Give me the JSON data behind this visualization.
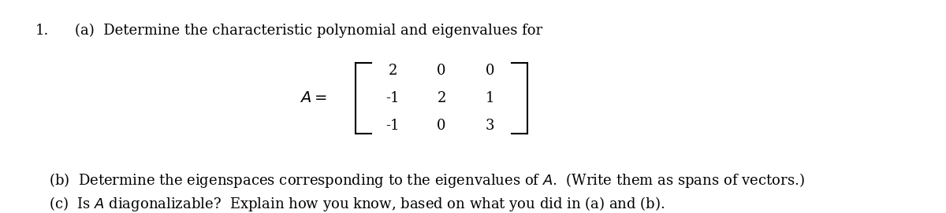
{
  "bg_color": "#ffffff",
  "text_color": "#000000",
  "fig_width": 12.0,
  "fig_height": 2.71,
  "dpi": 100,
  "line1_number": "1.",
  "line1_text": "(a)  Determine the characteristic polynomial and eigenvalues for",
  "matrix_label": "A =",
  "matrix": [
    [
      2,
      0,
      0
    ],
    [
      -1,
      2,
      1
    ],
    [
      -1,
      0,
      3
    ]
  ],
  "line_b": "(b)  Determine the eigenspaces corresponding to the eigenvalues of $A$.  (Write them as spans of vectors.)",
  "line_c": "(c)  Is $A$ diagonalizable?  Explain how you know, based on what you did in (a) and (b).",
  "font_size_main": 13,
  "font_size_matrix": 13,
  "font_family": "serif"
}
